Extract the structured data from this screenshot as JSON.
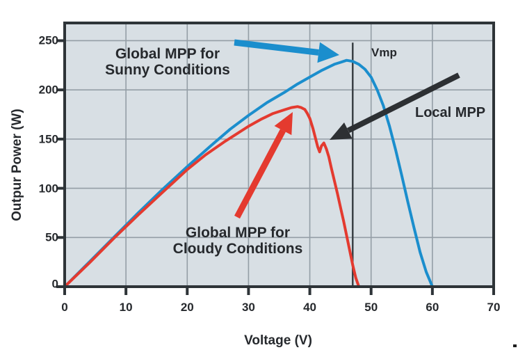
{
  "figure": {
    "background": "#ffffff",
    "plot_background": "#d8dfe4",
    "grid_color": "#949ea6",
    "frame_color": "#2e3438",
    "text_color": "#26292d"
  },
  "chart_data": {
    "type": "line",
    "title": "",
    "xlabel": "Voltage (V)",
    "ylabel": "Outpur Power (W)",
    "xlim": [
      0,
      70
    ],
    "ylim": [
      0,
      268
    ],
    "x_ticks": [
      0,
      10,
      20,
      30,
      40,
      50,
      60,
      70
    ],
    "y_ticks": [
      0,
      50,
      100,
      150,
      200,
      250
    ],
    "grid": true,
    "legend": "none",
    "series": [
      {
        "name": "Sunny conditions",
        "color": "#1b8ecd",
        "points": [
          [
            0,
            0
          ],
          [
            4,
            25
          ],
          [
            8,
            50
          ],
          [
            12,
            75
          ],
          [
            16,
            99
          ],
          [
            20,
            122
          ],
          [
            24,
            144
          ],
          [
            27,
            160
          ],
          [
            30,
            174
          ],
          [
            33,
            187
          ],
          [
            36,
            198
          ],
          [
            38,
            206
          ],
          [
            40,
            213
          ],
          [
            42,
            220
          ],
          [
            44,
            226
          ],
          [
            45,
            228
          ],
          [
            46,
            230
          ],
          [
            47,
            229
          ],
          [
            48,
            226
          ],
          [
            49,
            221
          ],
          [
            50,
            213
          ],
          [
            51,
            200
          ],
          [
            52,
            184
          ],
          [
            53,
            163
          ],
          [
            54,
            139
          ],
          [
            55,
            113
          ],
          [
            56,
            86
          ],
          [
            57,
            60
          ],
          [
            58,
            35
          ],
          [
            59,
            15
          ],
          [
            60,
            0
          ]
        ]
      },
      {
        "name": "Cloudy conditions",
        "color": "#e43a2f",
        "points": [
          [
            0,
            0
          ],
          [
            4,
            24
          ],
          [
            8,
            49
          ],
          [
            12,
            73
          ],
          [
            16,
            96
          ],
          [
            20,
            119
          ],
          [
            23,
            134
          ],
          [
            26,
            147
          ],
          [
            28,
            155
          ],
          [
            30,
            163
          ],
          [
            32,
            170
          ],
          [
            34,
            176
          ],
          [
            36,
            180
          ],
          [
            37,
            182
          ],
          [
            38,
            183
          ],
          [
            38.6,
            182
          ],
          [
            39.2,
            180
          ],
          [
            39.6,
            176
          ],
          [
            40,
            171
          ],
          [
            40.5,
            161
          ],
          [
            41,
            149
          ],
          [
            41.3,
            142
          ],
          [
            41.6,
            137
          ],
          [
            41.9,
            143
          ],
          [
            42.3,
            146
          ],
          [
            42.7,
            140
          ],
          [
            43.1,
            132
          ],
          [
            43.5,
            121
          ],
          [
            44,
            108
          ],
          [
            44.5,
            95
          ],
          [
            45,
            81
          ],
          [
            45.5,
            67
          ],
          [
            46,
            52
          ],
          [
            46.5,
            37
          ],
          [
            47,
            22
          ],
          [
            47.5,
            9
          ],
          [
            48,
            0
          ]
        ]
      }
    ],
    "reference_line": {
      "label": "Vmp",
      "x": 47,
      "y_bottom": 0,
      "y_top": 248
    },
    "annotations": [
      {
        "id": "sunny",
        "label": "Global MPP for\nSunny Conditions",
        "color": "#1b8ecd",
        "target": {
          "x": 45,
          "y": 228
        }
      },
      {
        "id": "cloudy",
        "label": "Global MPP for\nCloudy Conditions",
        "color": "#e43a2f",
        "target": {
          "x": 37.5,
          "y": 180
        }
      },
      {
        "id": "local",
        "label": "Local MPP",
        "color": "#2d3033",
        "target": {
          "x": 43,
          "y": 150
        }
      }
    ]
  }
}
